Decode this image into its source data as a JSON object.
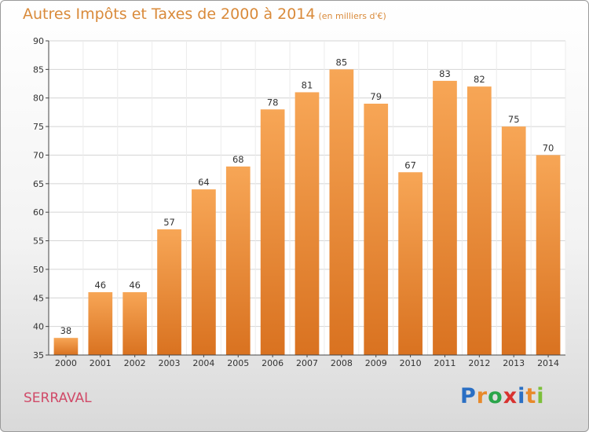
{
  "header": {
    "title": "Autres Impôts et Taxes de 2000 à 2014",
    "unit": "(en milliers d'€)"
  },
  "commune": "SERRAVAL",
  "logo": {
    "letters": [
      "P",
      "r",
      "o",
      "x",
      "i",
      "t",
      "i"
    ],
    "colors": [
      "#2a6fc4",
      "#e8892a",
      "#2aa54a",
      "#d8322f",
      "#2a6fc4",
      "#e8892a",
      "#7cbf3a"
    ]
  },
  "chart_data": {
    "type": "bar",
    "title": "Autres Impôts et Taxes de 2000 à 2014",
    "xlabel": "",
    "ylabel": "",
    "categories": [
      "2000",
      "2001",
      "2002",
      "2003",
      "2004",
      "2005",
      "2006",
      "2007",
      "2008",
      "2009",
      "2010",
      "2011",
      "2012",
      "2013",
      "2014"
    ],
    "values": [
      38,
      46,
      46,
      57,
      64,
      68,
      78,
      81,
      85,
      79,
      67,
      83,
      82,
      75,
      70
    ],
    "ylim": [
      35,
      90
    ],
    "yticks": [
      35,
      40,
      45,
      50,
      55,
      60,
      65,
      70,
      75,
      80,
      85,
      90
    ],
    "grid": true,
    "bar_color": "#f0a04a"
  }
}
